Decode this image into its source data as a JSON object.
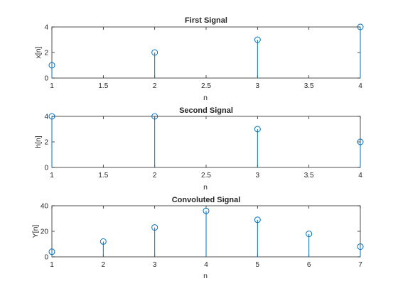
{
  "chart_data": [
    {
      "type": "stem",
      "title": "First Signal",
      "xlabel": "n",
      "ylabel": "x[n]",
      "xlim": [
        1,
        4
      ],
      "ylim": [
        0,
        4
      ],
      "xticks": [
        "1",
        "1.5",
        "2",
        "2.5",
        "3",
        "3.5",
        "4"
      ],
      "xtick_values": [
        1,
        1.5,
        2,
        2.5,
        3,
        3.5,
        4
      ],
      "yticks": [
        "0",
        "2",
        "4"
      ],
      "ytick_values": [
        0,
        2,
        4
      ],
      "x": [
        1,
        2,
        3,
        4
      ],
      "y": [
        1,
        2,
        3,
        4
      ],
      "grid": false
    },
    {
      "type": "stem",
      "title": "Second Signal",
      "xlabel": "n",
      "ylabel": "h[n]",
      "xlim": [
        1,
        4
      ],
      "ylim": [
        0,
        4
      ],
      "xticks": [
        "1",
        "1.5",
        "2",
        "2.5",
        "3",
        "3.5",
        "4"
      ],
      "xtick_values": [
        1,
        1.5,
        2,
        2.5,
        3,
        3.5,
        4
      ],
      "yticks": [
        "0",
        "2",
        "4"
      ],
      "ytick_values": [
        0,
        2,
        4
      ],
      "x": [
        1,
        2,
        3,
        4
      ],
      "y": [
        4,
        4,
        3,
        2
      ],
      "grid": false
    },
    {
      "type": "stem",
      "title": "Convoluted Signal",
      "xlabel": "n",
      "ylabel": "Y[n]",
      "xlim": [
        1,
        7
      ],
      "ylim": [
        0,
        40
      ],
      "xticks": [
        "1",
        "2",
        "3",
        "4",
        "5",
        "6",
        "7"
      ],
      "xtick_values": [
        1,
        2,
        3,
        4,
        5,
        6,
        7
      ],
      "yticks": [
        "0",
        "20",
        "40"
      ],
      "ytick_values": [
        0,
        20,
        40
      ],
      "x": [
        1,
        2,
        3,
        4,
        5,
        6,
        7
      ],
      "y": [
        4,
        12,
        23,
        36,
        29,
        18,
        8
      ],
      "grid": false
    }
  ],
  "colors": {
    "stem": "#0072BD",
    "axes": "#262626",
    "background": "#FFFFFF"
  }
}
